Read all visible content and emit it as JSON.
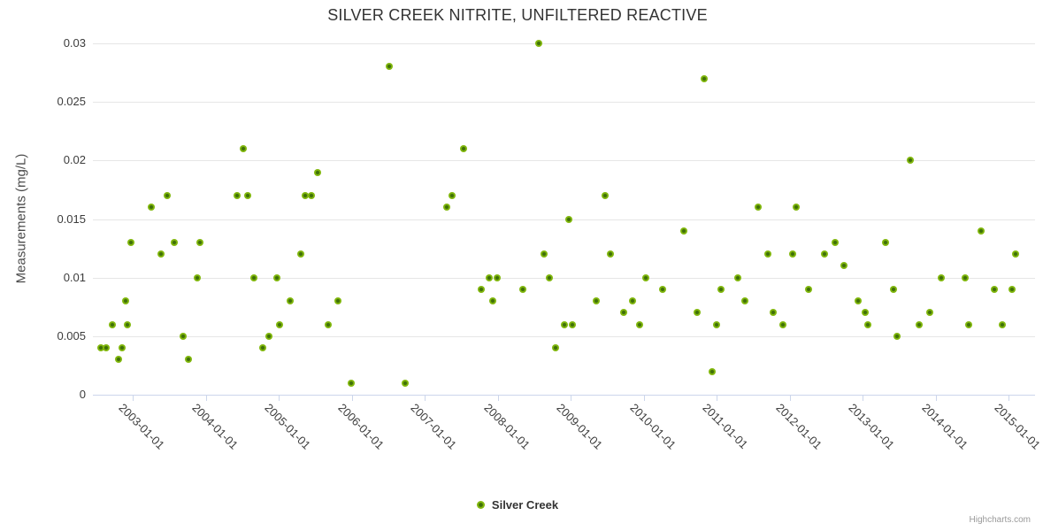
{
  "credits": "Highcharts.com",
  "chart_data": {
    "type": "scatter",
    "title": "SILVER CREEK NITRITE, UNFILTERED REACTIVE",
    "xlabel": "",
    "ylabel": "Measurements (mg/L)",
    "ylim": [
      0,
      0.03
    ],
    "xlim_years": [
      2002.45,
      2015.36
    ],
    "grid": "horizontal",
    "legend_position": "bottom-center",
    "marker_color": "#82b80e",
    "marker_core_color": "#3f7008",
    "grid_color": "#e6e6e6",
    "axis_color": "#ccd6eb",
    "ytick_values": [
      0,
      0.005,
      0.01,
      0.015,
      0.02,
      0.025,
      0.03
    ],
    "ytick_labels": [
      "0",
      "0.005",
      "0.01",
      "0.015",
      "0.02",
      "0.025",
      "0.03"
    ],
    "xtick_values": [
      2003,
      2004,
      2005,
      2006,
      2007,
      2008,
      2009,
      2010,
      2011,
      2012,
      2013,
      2014,
      2015
    ],
    "xtick_labels": [
      "2003-01-01",
      "2004-01-01",
      "2005-01-01",
      "2006-01-01",
      "2007-01-01",
      "2008-01-01",
      "2009-01-01",
      "2010-01-01",
      "2011-01-01",
      "2012-01-01",
      "2013-01-01",
      "2014-01-01",
      "2015-01-01"
    ],
    "series": [
      {
        "name": "Silver Creek",
        "points": [
          [
            2002.56,
            0.004
          ],
          [
            2002.64,
            0.004
          ],
          [
            2002.72,
            0.006
          ],
          [
            2002.81,
            0.003
          ],
          [
            2002.86,
            0.004
          ],
          [
            2002.9,
            0.008
          ],
          [
            2002.93,
            0.006
          ],
          [
            2002.98,
            0.013
          ],
          [
            2003.25,
            0.016
          ],
          [
            2003.39,
            0.012
          ],
          [
            2003.47,
            0.017
          ],
          [
            2003.57,
            0.013
          ],
          [
            2003.69,
            0.005
          ],
          [
            2003.76,
            0.003
          ],
          [
            2003.88,
            0.01
          ],
          [
            2003.92,
            0.013
          ],
          [
            2004.43,
            0.017
          ],
          [
            2004.52,
            0.021
          ],
          [
            2004.58,
            0.017
          ],
          [
            2004.66,
            0.01
          ],
          [
            2004.78,
            0.004
          ],
          [
            2004.87,
            0.005
          ],
          [
            2004.97,
            0.01
          ],
          [
            2005.01,
            0.006
          ],
          [
            2005.16,
            0.008
          ],
          [
            2005.3,
            0.012
          ],
          [
            2005.36,
            0.017
          ],
          [
            2005.45,
            0.017
          ],
          [
            2005.53,
            0.019
          ],
          [
            2005.68,
            0.006
          ],
          [
            2005.81,
            0.008
          ],
          [
            2005.99,
            0.001
          ],
          [
            2006.51,
            0.028
          ],
          [
            2006.73,
            0.001
          ],
          [
            2007.3,
            0.016
          ],
          [
            2007.38,
            0.017
          ],
          [
            2007.53,
            0.021
          ],
          [
            2007.77,
            0.009
          ],
          [
            2007.88,
            0.01
          ],
          [
            2007.93,
            0.008
          ],
          [
            2007.99,
            0.01
          ],
          [
            2008.35,
            0.009
          ],
          [
            2008.56,
            0.03
          ],
          [
            2008.64,
            0.012
          ],
          [
            2008.71,
            0.01
          ],
          [
            2008.79,
            0.004
          ],
          [
            2008.91,
            0.006
          ],
          [
            2008.97,
            0.015
          ],
          [
            2009.02,
            0.006
          ],
          [
            2009.35,
            0.008
          ],
          [
            2009.47,
            0.017
          ],
          [
            2009.55,
            0.012
          ],
          [
            2009.73,
            0.007
          ],
          [
            2009.85,
            0.008
          ],
          [
            2009.94,
            0.006
          ],
          [
            2010.03,
            0.01
          ],
          [
            2010.26,
            0.009
          ],
          [
            2010.55,
            0.014
          ],
          [
            2010.73,
            0.007
          ],
          [
            2010.83,
            0.027
          ],
          [
            2010.94,
            0.002
          ],
          [
            2011.0,
            0.006
          ],
          [
            2011.06,
            0.009
          ],
          [
            2011.29,
            0.01
          ],
          [
            2011.39,
            0.008
          ],
          [
            2011.57,
            0.016
          ],
          [
            2011.7,
            0.012
          ],
          [
            2011.78,
            0.007
          ],
          [
            2011.91,
            0.006
          ],
          [
            2012.04,
            0.012
          ],
          [
            2012.09,
            0.016
          ],
          [
            2012.26,
            0.009
          ],
          [
            2012.48,
            0.012
          ],
          [
            2012.62,
            0.013
          ],
          [
            2012.75,
            0.011
          ],
          [
            2012.94,
            0.008
          ],
          [
            2013.04,
            0.007
          ],
          [
            2013.07,
            0.006
          ],
          [
            2013.32,
            0.013
          ],
          [
            2013.43,
            0.009
          ],
          [
            2013.47,
            0.005
          ],
          [
            2013.65,
            0.02
          ],
          [
            2013.78,
            0.006
          ],
          [
            2013.92,
            0.007
          ],
          [
            2014.08,
            0.01
          ],
          [
            2014.4,
            0.01
          ],
          [
            2014.45,
            0.006
          ],
          [
            2014.63,
            0.014
          ],
          [
            2014.8,
            0.009
          ],
          [
            2014.91,
            0.006
          ],
          [
            2015.05,
            0.009
          ],
          [
            2015.1,
            0.012
          ]
        ]
      }
    ]
  }
}
